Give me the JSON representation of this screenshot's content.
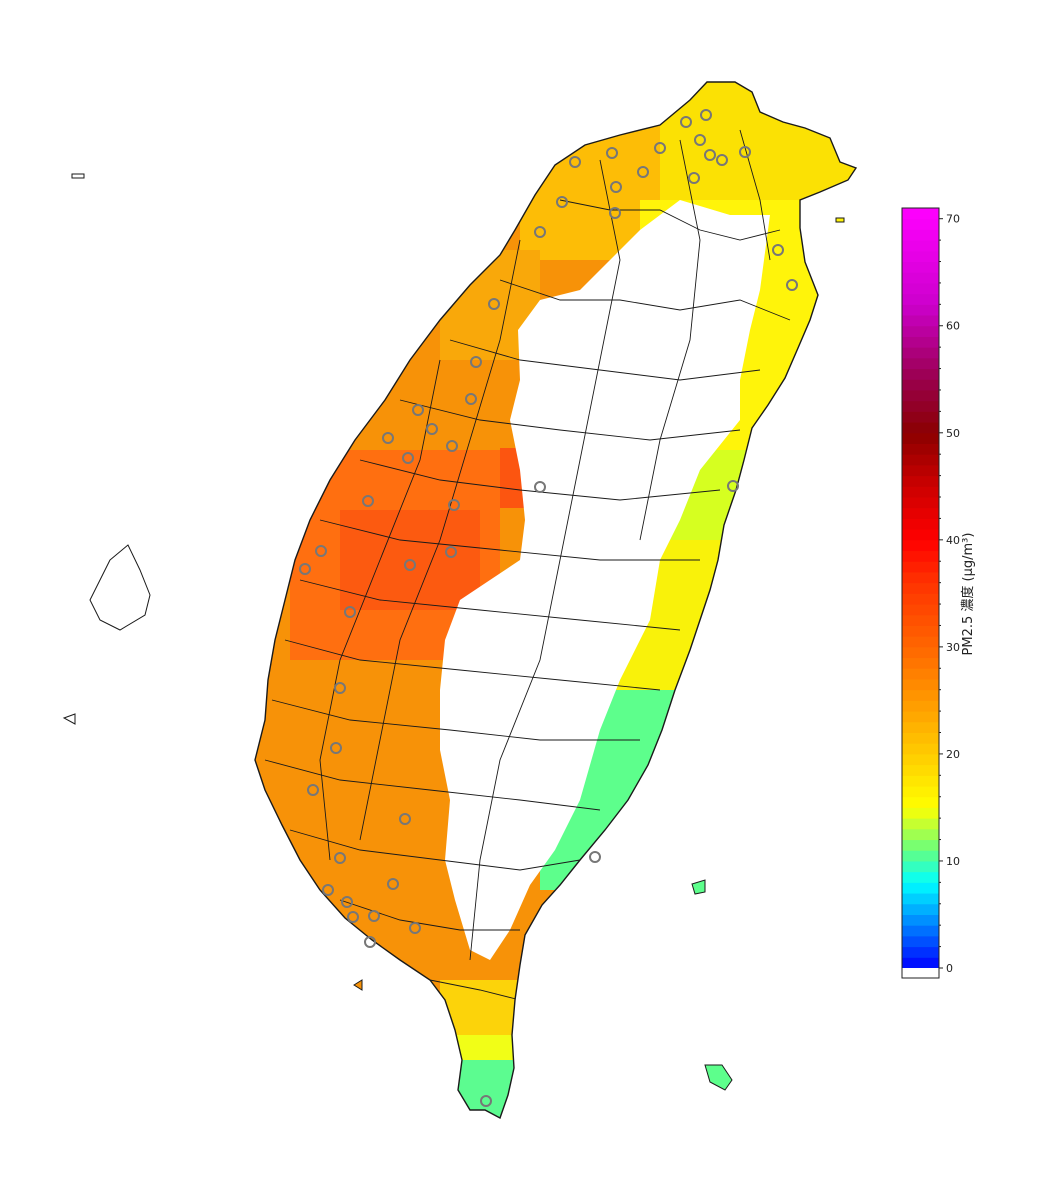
{
  "map": {
    "region": "Taiwan",
    "variable": "PM2.5",
    "colorbar": {
      "label": "PM2.5 濃度 (μg/m³)",
      "min": 0,
      "max": 71,
      "ticks": [
        "0",
        "10",
        "20",
        "30",
        "40",
        "50",
        "60",
        "70"
      ],
      "tick_values": [
        0,
        10,
        20,
        30,
        40,
        50,
        60,
        70
      ],
      "stops": [
        {
          "value": 0,
          "color": "#0000ff"
        },
        {
          "value": 4,
          "color": "#0080ff"
        },
        {
          "value": 8,
          "color": "#00ffff"
        },
        {
          "value": 11,
          "color": "#66ff80"
        },
        {
          "value": 15,
          "color": "#ffff00"
        },
        {
          "value": 20,
          "color": "#ffcc00"
        },
        {
          "value": 25,
          "color": "#ff9900"
        },
        {
          "value": 30,
          "color": "#ff6600"
        },
        {
          "value": 36,
          "color": "#ff3300"
        },
        {
          "value": 40,
          "color": "#ff0000"
        },
        {
          "value": 45,
          "color": "#cc0000"
        },
        {
          "value": 50,
          "color": "#8b0000"
        },
        {
          "value": 55,
          "color": "#99004d"
        },
        {
          "value": 62,
          "color": "#cc00cc"
        },
        {
          "value": 71,
          "color": "#ff00ff"
        }
      ]
    },
    "mountain_no_data_color": "#ffffff",
    "district_line_color": "#1a1a1a",
    "station_marker_color": "#777777"
  }
}
